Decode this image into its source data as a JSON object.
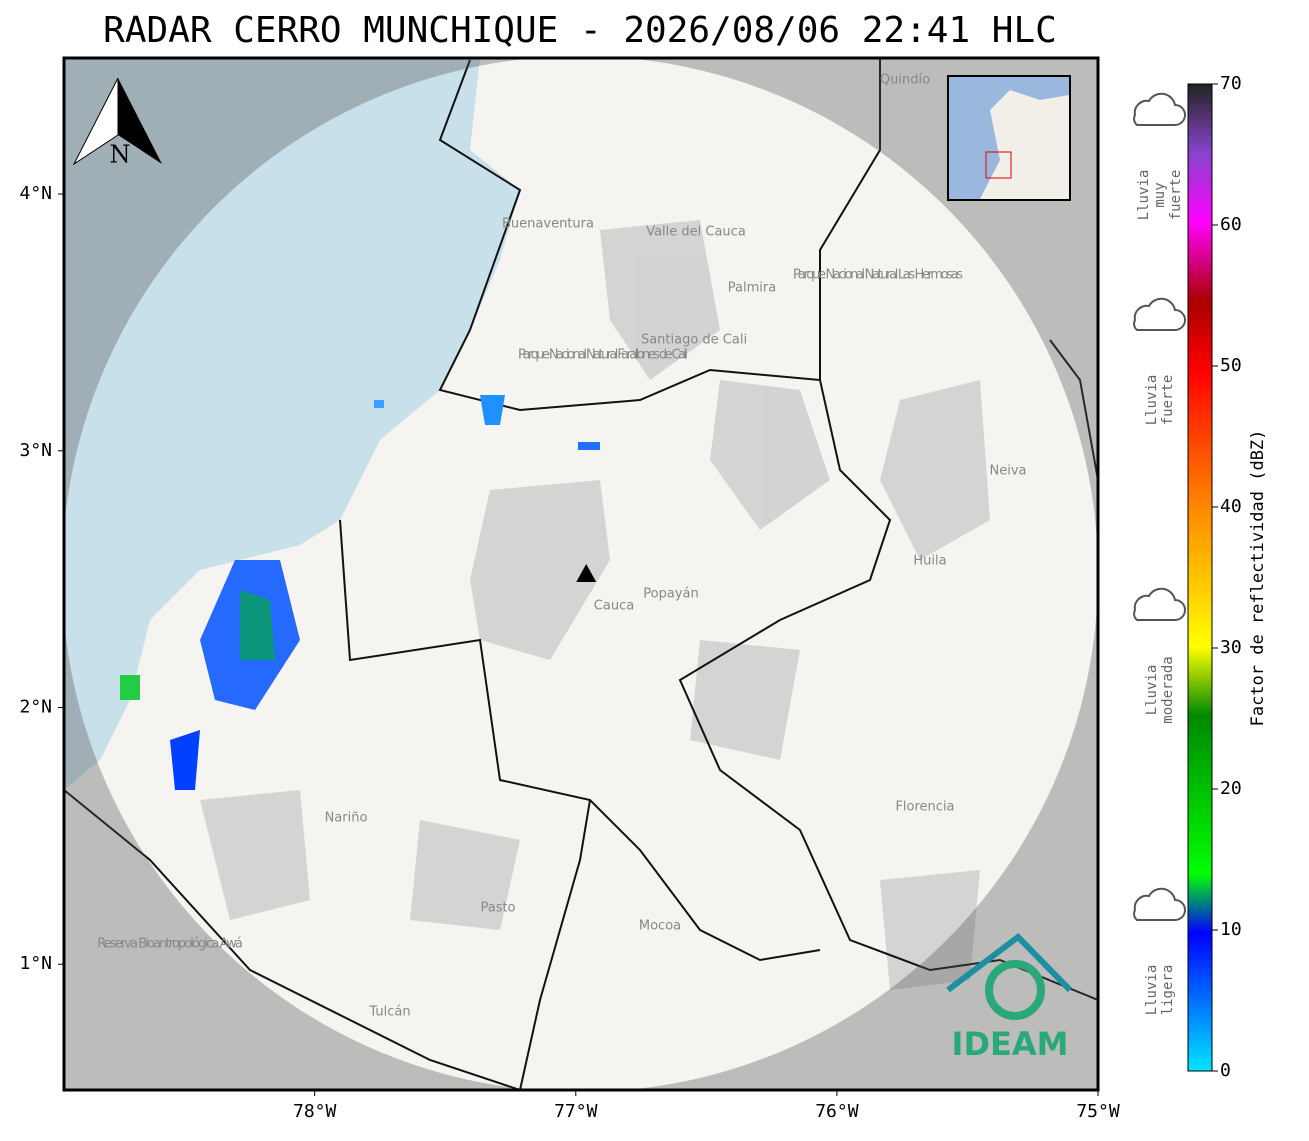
{
  "title": "RADAR CERRO MUNCHIQUE - 2026/08/06 22:41 HLC",
  "map": {
    "xlim": [
      -78.96,
      -75.0
    ],
    "ylim": [
      0.51,
      4.53
    ],
    "xticks": [
      {
        "value": -78,
        "label": "78°W"
      },
      {
        "value": -77,
        "label": "77°W"
      },
      {
        "value": -76,
        "label": "76°W"
      },
      {
        "value": -75,
        "label": "75°W"
      }
    ],
    "yticks": [
      {
        "value": 1,
        "label": "1°N"
      },
      {
        "value": 2,
        "label": "2°N"
      },
      {
        "value": 3,
        "label": "3°N"
      },
      {
        "value": 4,
        "label": "4°N"
      }
    ],
    "grid": true,
    "radar_site": {
      "lon": -76.96,
      "lat": 2.52
    },
    "north_label": "N",
    "places": [
      "Buenaventura",
      "Valle del Cauca",
      "Palmira",
      "Santiago de Cali",
      "Parque Nacional Natural Farallones de Cali",
      "Parque Nacional Natural Las Hermosas",
      "Neiva",
      "Huila",
      "Cauca",
      "Popayán",
      "Nariño",
      "Pasto",
      "Mocoa",
      "Tulcán",
      "Reserva Bioantropológica Awá",
      "Florencia",
      "Quindío"
    ]
  },
  "colorbar": {
    "label": "Factor de reflectividad (dBZ)",
    "lim": [
      0,
      70
    ],
    "ticks": [
      0,
      10,
      20,
      30,
      40,
      50,
      60,
      70
    ]
  },
  "rain_levels": [
    "Lluvia muy fuerte",
    "Lluvia fuerte",
    "Lluvia moderada",
    "Lluvia ligera"
  ],
  "logo": "IDEAM"
}
